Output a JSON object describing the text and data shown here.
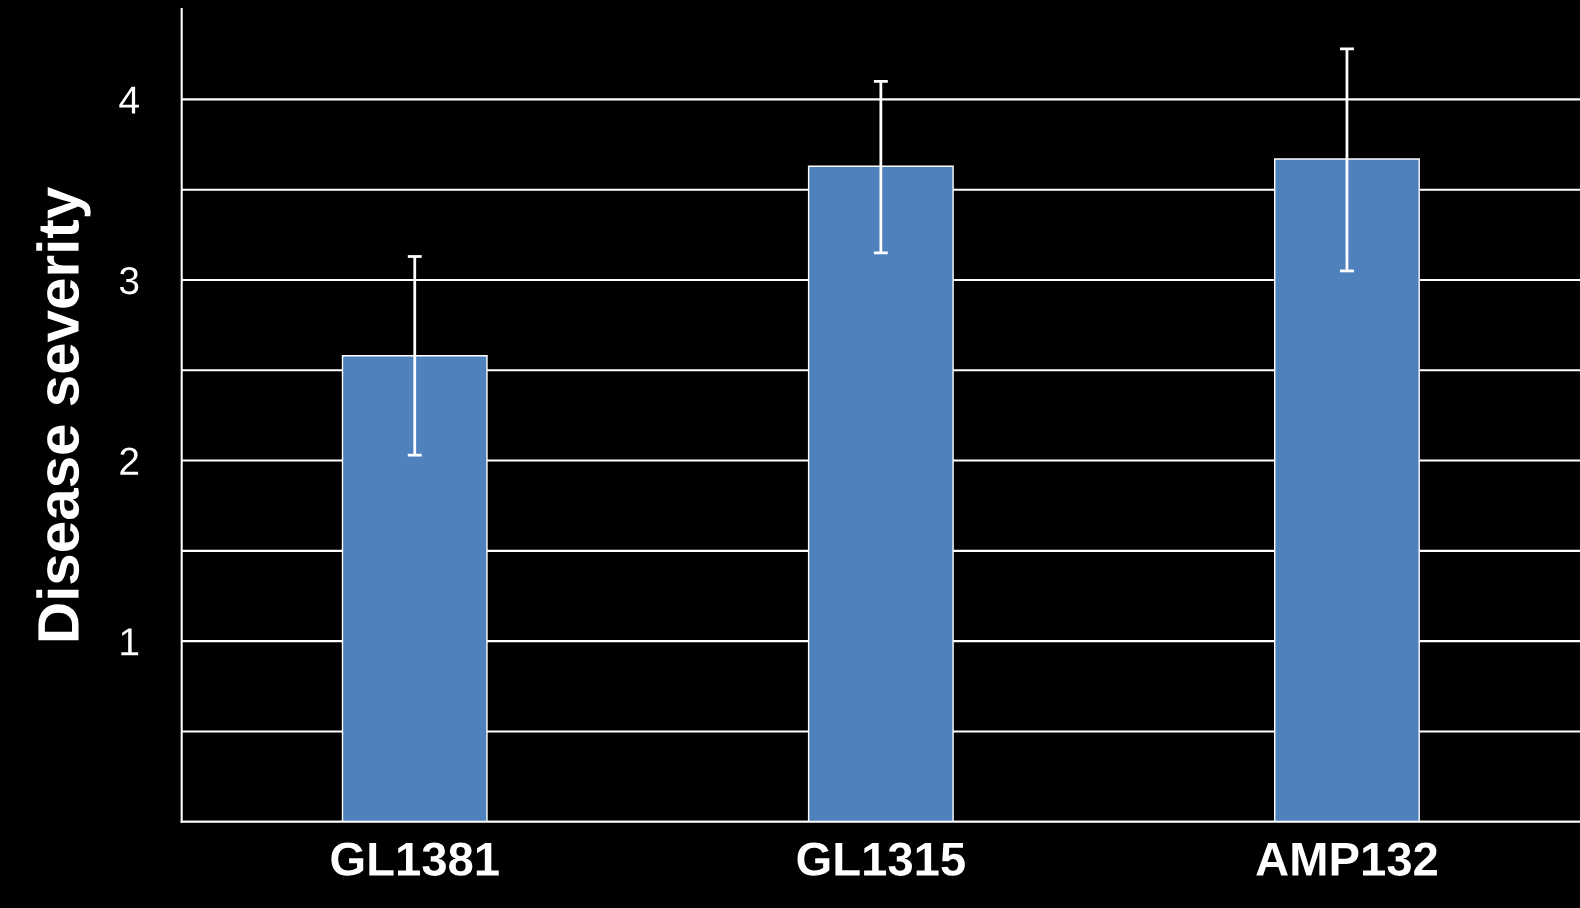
{
  "chart_data": {
    "type": "bar",
    "ylabel": "Disease severity",
    "categories": [
      "GL1381",
      "GL1315",
      "AMP132"
    ],
    "series": [
      {
        "color": "#4f81bd",
        "values": [
          2.58,
          3.63,
          3.67
        ],
        "errors": [
          [
            2.03,
            3.13
          ],
          [
            3.15,
            4.1
          ],
          [
            3.05,
            4.28
          ]
        ]
      }
    ],
    "ylim": [
      0,
      4.5
    ],
    "yticks": [
      {
        "value": 0,
        "label": null
      },
      {
        "value": 0.5,
        "label": null
      },
      1,
      {
        "value": 1.5,
        "label": null
      },
      2,
      {
        "value": 2.5,
        "label": null
      },
      3,
      {
        "value": 3.5,
        "label": null
      },
      4
    ],
    "grid": "y",
    "legend": false
  }
}
